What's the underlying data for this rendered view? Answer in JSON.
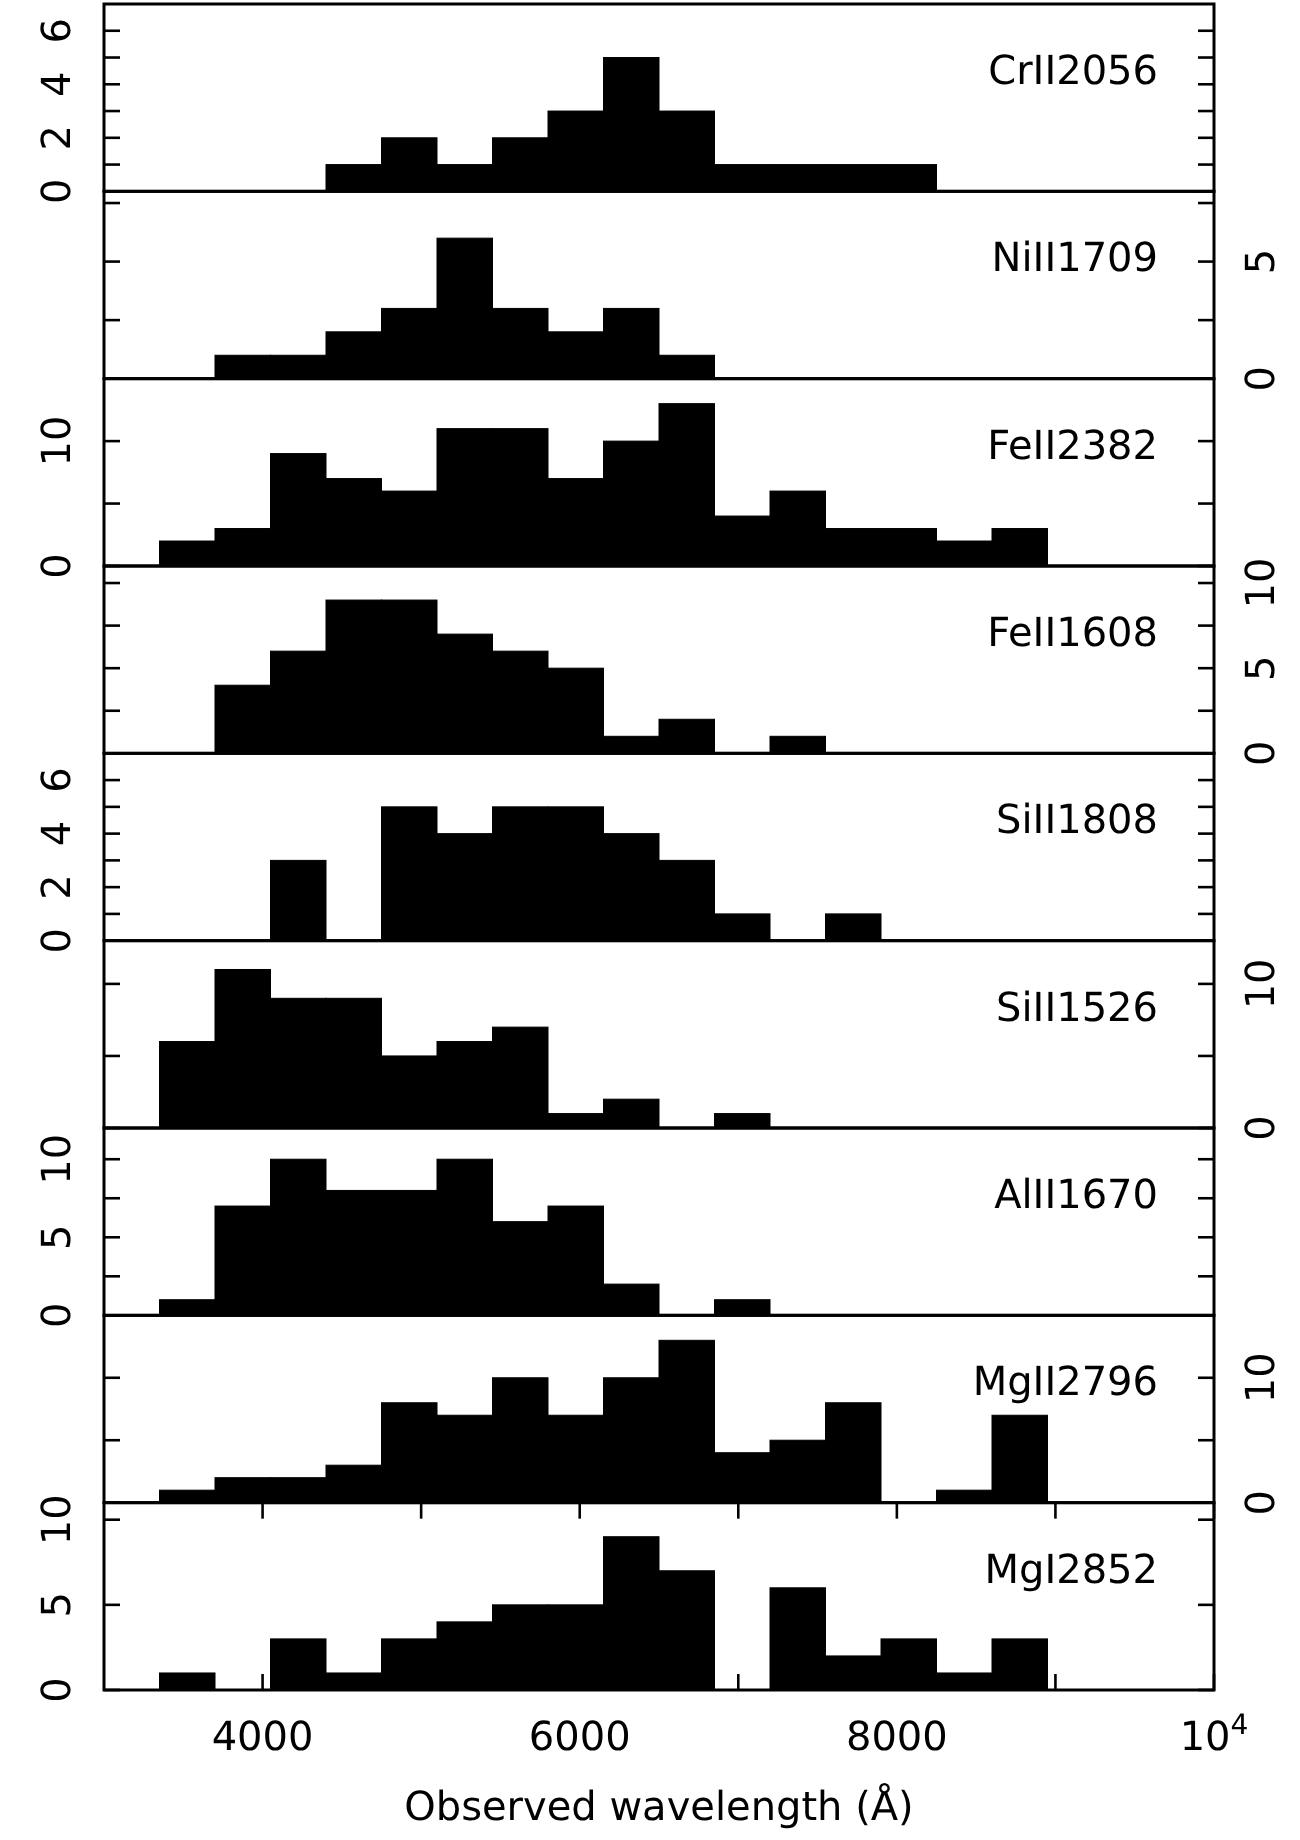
{
  "chart_data": [
    {
      "type": "histogram",
      "title": "CrII2056",
      "bins": [
        3350,
        3700,
        4050,
        4400,
        4750,
        5100,
        5450,
        5800,
        6150,
        6500,
        6850,
        7200,
        7550,
        7900,
        8250,
        8600,
        8950
      ],
      "values": [
        0,
        0,
        0,
        1,
        2,
        1,
        2,
        3,
        5,
        3,
        1,
        1,
        1,
        1,
        0,
        0
      ],
      "color": "#000000",
      "xlim": [
        3000,
        10000
      ],
      "ylim": [
        0,
        7
      ],
      "yticks": [
        0,
        {
          "value": 1,
          "label": null
        },
        2,
        {
          "value": 3,
          "label": null
        },
        4,
        {
          "value": 5,
          "label": null
        },
        6
      ],
      "tick_labels": "y"
    },
    {
      "type": "histogram",
      "title": "NiII1709",
      "bins": [
        3350,
        3700,
        4050,
        4400,
        4750,
        5100,
        5450,
        5800,
        6150,
        6500,
        6850,
        7200,
        7550,
        7900,
        8250,
        8600,
        8950
      ],
      "values": [
        0,
        1,
        1,
        2,
        3,
        6,
        3,
        2,
        3,
        1,
        0,
        0,
        0,
        0,
        0,
        0
      ],
      "color": "#000000",
      "xlim": [
        3000,
        10000
      ],
      "ylim": [
        0,
        8
      ],
      "yticks": [
        0,
        {
          "value": 2.5,
          "label": null
        },
        5,
        {
          "value": 7.5,
          "label": null
        }
      ],
      "tick_labels": "y"
    },
    {
      "type": "histogram",
      "title": "FeII2382",
      "bins": [
        3350,
        3700,
        4050,
        4400,
        4750,
        5100,
        5450,
        5800,
        6150,
        6500,
        6850,
        7200,
        7550,
        7900,
        8250,
        8600,
        8950
      ],
      "values": [
        2,
        3,
        9,
        7,
        6,
        11,
        11,
        7,
        10,
        13,
        4,
        6,
        3,
        3,
        2,
        3
      ],
      "color": "#000000",
      "xlim": [
        3000,
        10000
      ],
      "ylim": [
        0,
        15
      ],
      "yticks": [
        0,
        {
          "value": 5,
          "label": null
        },
        10
      ],
      "tick_labels": "y"
    },
    {
      "type": "histogram",
      "title": "FeII1608",
      "bins": [
        3350,
        3700,
        4050,
        4400,
        4750,
        5100,
        5450,
        5800,
        6150,
        6500,
        6850,
        7200,
        7550,
        7900,
        8250,
        8600,
        8950
      ],
      "values": [
        0,
        4,
        6,
        9,
        9,
        7,
        6,
        5,
        1,
        2,
        0,
        1,
        0,
        0,
        0,
        0
      ],
      "color": "#000000",
      "xlim": [
        3000,
        10000
      ],
      "ylim": [
        0,
        11
      ],
      "yticks": [
        0,
        {
          "value": 2.5,
          "label": null
        },
        5,
        {
          "value": 7.5,
          "label": null
        },
        10
      ],
      "tick_labels": "y"
    },
    {
      "type": "histogram",
      "title": "SiII1808",
      "bins": [
        3350,
        3700,
        4050,
        4400,
        4750,
        5100,
        5450,
        5800,
        6150,
        6500,
        6850,
        7200,
        7550,
        7900,
        8250,
        8600,
        8950
      ],
      "values": [
        0,
        0,
        3,
        0,
        5,
        4,
        5,
        5,
        4,
        3,
        1,
        0,
        1,
        0,
        0,
        0
      ],
      "color": "#000000",
      "xlim": [
        3000,
        10000
      ],
      "ylim": [
        0,
        7
      ],
      "yticks": [
        0,
        {
          "value": 1,
          "label": null
        },
        2,
        {
          "value": 3,
          "label": null
        },
        4,
        {
          "value": 5,
          "label": null
        },
        6
      ],
      "tick_labels": "y"
    },
    {
      "type": "histogram",
      "title": "SiII1526",
      "bins": [
        3350,
        3700,
        4050,
        4400,
        4750,
        5100,
        5450,
        5800,
        6150,
        6500,
        6850,
        7200,
        7550,
        7900,
        8250,
        8600,
        8950
      ],
      "values": [
        6,
        11,
        9,
        9,
        5,
        6,
        7,
        1,
        2,
        0,
        1,
        0,
        0,
        0,
        0,
        0
      ],
      "color": "#000000",
      "xlim": [
        3000,
        10000
      ],
      "ylim": [
        0,
        13
      ],
      "yticks": [
        0,
        {
          "value": 5,
          "label": null
        },
        10
      ],
      "tick_labels": "y"
    },
    {
      "type": "histogram",
      "title": "AlII1670",
      "bins": [
        3350,
        3700,
        4050,
        4400,
        4750,
        5100,
        5450,
        5800,
        6150,
        6500,
        6850,
        7200,
        7550,
        7900,
        8250,
        8600,
        8950
      ],
      "values": [
        1,
        7,
        10,
        8,
        8,
        10,
        6,
        7,
        2,
        0,
        1,
        0,
        0,
        0,
        0,
        0
      ],
      "color": "#000000",
      "xlim": [
        3000,
        10000
      ],
      "ylim": [
        0,
        12
      ],
      "yticks": [
        0,
        {
          "value": 2.5,
          "label": null
        },
        5,
        {
          "value": 7.5,
          "label": null
        },
        10
      ],
      "tick_labels": "y"
    },
    {
      "type": "histogram",
      "title": "MgII2796",
      "bins": [
        3350,
        3700,
        4050,
        4400,
        4750,
        5100,
        5450,
        5800,
        6150,
        6500,
        6850,
        7200,
        7550,
        7900,
        8250,
        8600,
        8950
      ],
      "values": [
        1,
        2,
        2,
        3,
        8,
        7,
        10,
        7,
        10,
        13,
        4,
        5,
        8,
        0,
        1,
        7
      ],
      "color": "#000000",
      "xlim": [
        3000,
        10000
      ],
      "ylim": [
        0,
        15
      ],
      "yticks": [
        0,
        {
          "value": 5,
          "label": null
        },
        10
      ],
      "tick_labels": "y"
    },
    {
      "type": "histogram",
      "title": "MgI2852",
      "xlabel": "Observed wavelength (Å)",
      "bins": [
        3350,
        3700,
        4050,
        4400,
        4750,
        5100,
        5450,
        5800,
        6150,
        6500,
        6850,
        7200,
        7550,
        7900,
        8250,
        8600,
        8950
      ],
      "values": [
        1,
        0,
        3,
        1,
        3,
        4,
        5,
        5,
        9,
        7,
        0,
        6,
        2,
        3,
        1,
        3
      ],
      "color": "#000000",
      "xlim": [
        3000,
        10000
      ],
      "ylim": [
        0,
        11
      ],
      "yticks": [
        0,
        5,
        10
      ],
      "xticks": [
        4000,
        {
          "value": 5000,
          "label": null
        },
        6000,
        {
          "value": 7000,
          "label": null
        },
        8000,
        {
          "value": 9000,
          "label": null
        },
        {
          "value": 10000,
          "label": "10$^{4}$"
        }
      ]
    }
  ]
}
